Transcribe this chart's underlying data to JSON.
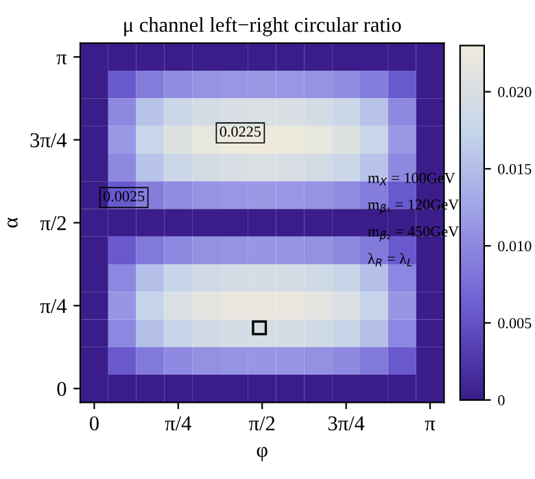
{
  "chart_data": {
    "type": "heatmap",
    "title": "μ channel left−right circular ratio",
    "xlabel": "φ",
    "ylabel": "α",
    "categories": [
      "0",
      null,
      null,
      "π/4",
      null,
      null,
      "π/2",
      null,
      null,
      "3π/4",
      null,
      null,
      "π"
    ],
    "y_categories": [
      "π",
      null,
      null,
      "3π/4",
      null,
      null,
      "π/2",
      null,
      null,
      "π/4",
      null,
      null,
      "0"
    ],
    "cells": [
      [
        0,
        0,
        0,
        0,
        0,
        0,
        0,
        0,
        0,
        0,
        0,
        0,
        0
      ],
      [
        0,
        0.0057,
        0.0089,
        0.0103,
        0.0109,
        0.0113,
        0.0114,
        0.0113,
        0.0109,
        0.0103,
        0.0089,
        0.0057,
        0
      ],
      [
        0,
        0.01,
        0.0156,
        0.0181,
        0.0193,
        0.0199,
        0.0201,
        0.0199,
        0.0193,
        0.0181,
        0.0156,
        0.01,
        0
      ],
      [
        0,
        0.0114,
        0.0178,
        0.0205,
        0.0219,
        0.0226,
        0.0228,
        0.0226,
        0.0219,
        0.0205,
        0.0178,
        0.0114,
        0
      ],
      [
        0,
        0.01,
        0.0156,
        0.0181,
        0.0193,
        0.0199,
        0.0201,
        0.0199,
        0.0193,
        0.0181,
        0.0156,
        0.01,
        0
      ],
      [
        0,
        0.0057,
        0.0089,
        0.0103,
        0.0109,
        0.0113,
        0.0114,
        0.0113,
        0.0109,
        0.0103,
        0.0089,
        0.0057,
        0
      ],
      [
        0,
        0,
        0,
        0,
        0,
        0,
        0,
        0,
        0,
        0,
        0,
        0,
        0
      ],
      [
        0,
        0.0056,
        0.0087,
        0.01,
        0.0107,
        0.011,
        0.0111,
        0.011,
        0.0107,
        0.01,
        0.0087,
        0.0056,
        0
      ],
      [
        0,
        0.0098,
        0.0152,
        0.0176,
        0.0188,
        0.0193,
        0.0195,
        0.0193,
        0.0188,
        0.0176,
        0.0152,
        0.0098,
        0
      ],
      [
        0,
        0.0111,
        0.0173,
        0.02,
        0.0213,
        0.022,
        0.0222,
        0.022,
        0.0213,
        0.02,
        0.0173,
        0.0111,
        0
      ],
      [
        0,
        0.0098,
        0.0152,
        0.0176,
        0.0188,
        0.0193,
        0.0195,
        0.0193,
        0.0188,
        0.0176,
        0.0152,
        0.0098,
        0
      ],
      [
        0,
        0.0056,
        0.0087,
        0.01,
        0.0107,
        0.011,
        0.0111,
        0.011,
        0.0107,
        0.01,
        0.0087,
        0.0056,
        0
      ],
      [
        0,
        0,
        0,
        0,
        0,
        0,
        0,
        0,
        0,
        0,
        0,
        0,
        0
      ]
    ],
    "clim": [
      0,
      0.023
    ],
    "cticks": [
      0,
      0.005,
      {
        "value": 0.01,
        "label": "0.010"
      },
      0.015,
      {
        "value": 0.02,
        "label": "0.020"
      }
    ],
    "annotations": [
      "0.0225",
      "0.0025",
      "m$_{X}$ = 100GeV",
      "m$_{β₁}$ = 120GeV",
      "m$_{β₂}$ = 450GeV",
      "λ$_{R}$ = λ$_{L}$"
    ]
  }
}
